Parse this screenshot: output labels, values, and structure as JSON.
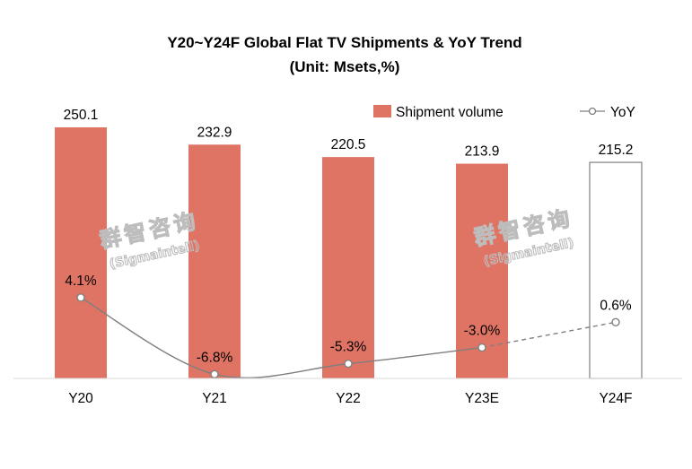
{
  "chart_data": {
    "type": "bar",
    "title": "Y20~Y24F Global Flat TV Shipments & YoY Trend",
    "subtitle": "(Unit: Msets,%)",
    "categories": [
      "Y20",
      "Y21",
      "Y22",
      "Y23E",
      "Y24F"
    ],
    "series": [
      {
        "name": "Shipment volume",
        "type": "bar",
        "values": [
          250.1,
          232.9,
          220.5,
          213.9,
          215.2
        ],
        "value_labels": [
          "250.1",
          "232.9",
          "220.5",
          "213.9",
          "215.2"
        ],
        "forecast_from_index": 4
      },
      {
        "name": "YoY",
        "type": "line",
        "values": [
          4.1,
          -6.8,
          -5.3,
          -3.0,
          0.6
        ],
        "value_labels": [
          "4.1%",
          "-6.8%",
          "-5.3%",
          "-3.0%",
          "0.6%"
        ],
        "dashed_from_index": 3
      }
    ],
    "legend_position": "top-right",
    "grid": false,
    "colors": {
      "bar": "#e07464",
      "line": "#7f7f7f",
      "forecast_bar_outline": "#7f7f7f"
    },
    "watermark": {
      "line1": "群智咨询",
      "line2": "(Sigmaintell)"
    }
  }
}
